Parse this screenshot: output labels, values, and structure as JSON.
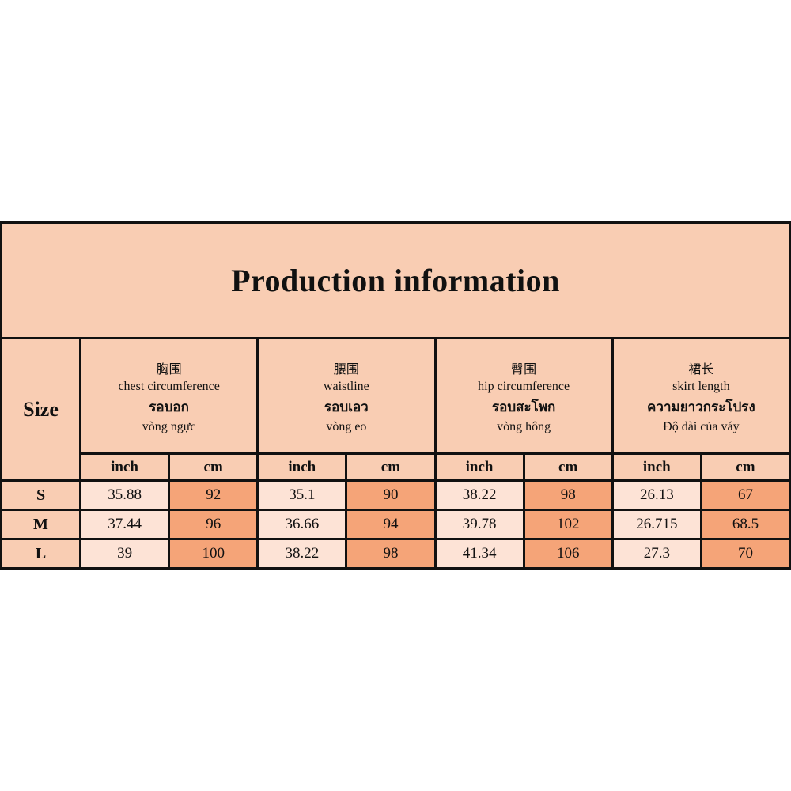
{
  "title": "Production information",
  "size_label": "Size",
  "columns": [
    {
      "zh": "胸围",
      "en": "chest circumference",
      "th": "รอบอก",
      "vi": "vòng ngực",
      "units": [
        "inch",
        "cm"
      ]
    },
    {
      "zh": "腰围",
      "en": "waistline",
      "th": "รอบเอว",
      "vi": "vòng eo",
      "units": [
        "inch",
        "cm"
      ]
    },
    {
      "zh": "臀围",
      "en": "hip circumference",
      "th": "รอบสะโพก",
      "vi": "vòng hông",
      "units": [
        "inch",
        "cm"
      ]
    },
    {
      "zh": "裙长",
      "en": "skirt length",
      "th": "ความยาวกระโปรง",
      "vi": "Độ dài của váy",
      "units": [
        "inch",
        "cm"
      ]
    }
  ],
  "rows": [
    {
      "size": "S",
      "values": [
        "35.88",
        "92",
        "35.1",
        "90",
        "38.22",
        "98",
        "26.13",
        "67"
      ]
    },
    {
      "size": "M",
      "values": [
        "37.44",
        "96",
        "36.66",
        "94",
        "39.78",
        "102",
        "26.715",
        "68.5"
      ]
    },
    {
      "size": "L",
      "values": [
        "39",
        "100",
        "38.22",
        "98",
        "41.34",
        "106",
        "27.3",
        "70"
      ]
    }
  ]
}
